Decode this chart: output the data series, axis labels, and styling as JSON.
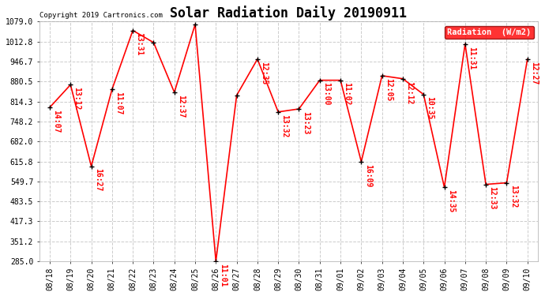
{
  "title": "Solar Radiation Daily 20190911",
  "copyright": "Copyright 2019 Cartronics.com",
  "legend_label": "Radiation  (W/m2)",
  "x_labels": [
    "08/18",
    "08/19",
    "08/20",
    "08/21",
    "08/22",
    "08/23",
    "08/24",
    "08/25",
    "08/26",
    "08/27",
    "08/28",
    "08/29",
    "08/30",
    "08/31",
    "09/01",
    "09/02",
    "09/03",
    "09/04",
    "09/05",
    "09/06",
    "09/07",
    "09/08",
    "09/09",
    "09/10"
  ],
  "y_values": [
    795,
    870,
    600,
    855,
    1050,
    1010,
    845,
    1070,
    285,
    835,
    955,
    780,
    790,
    885,
    885,
    615,
    900,
    890,
    838,
    530,
    1005,
    540,
    545,
    955
  ],
  "point_labels": [
    "14:07",
    "13:12",
    "16:27",
    "11:07",
    "13:31",
    "",
    "12:37",
    "",
    "11:01",
    "",
    "12:35",
    "13:32",
    "13:23",
    "13:00",
    "11:02",
    "16:09",
    "12:05",
    "12:12",
    "10:35",
    "14:35",
    "11:31",
    "12:33",
    "13:32",
    "12:27"
  ],
  "ylim_min": 285.0,
  "ylim_max": 1079.0,
  "yticks": [
    285.0,
    351.2,
    417.3,
    483.5,
    549.7,
    615.8,
    682.0,
    748.2,
    814.3,
    880.5,
    946.7,
    1012.8,
    1079.0
  ],
  "line_color": "red",
  "marker_color": "black",
  "plot_bg_color": "#ffffff",
  "fig_bg_color": "#ffffff",
  "grid_color": "#cccccc",
  "title_fontsize": 12,
  "copyright_fontsize": 6.5,
  "tick_fontsize": 7,
  "label_fontsize": 7
}
